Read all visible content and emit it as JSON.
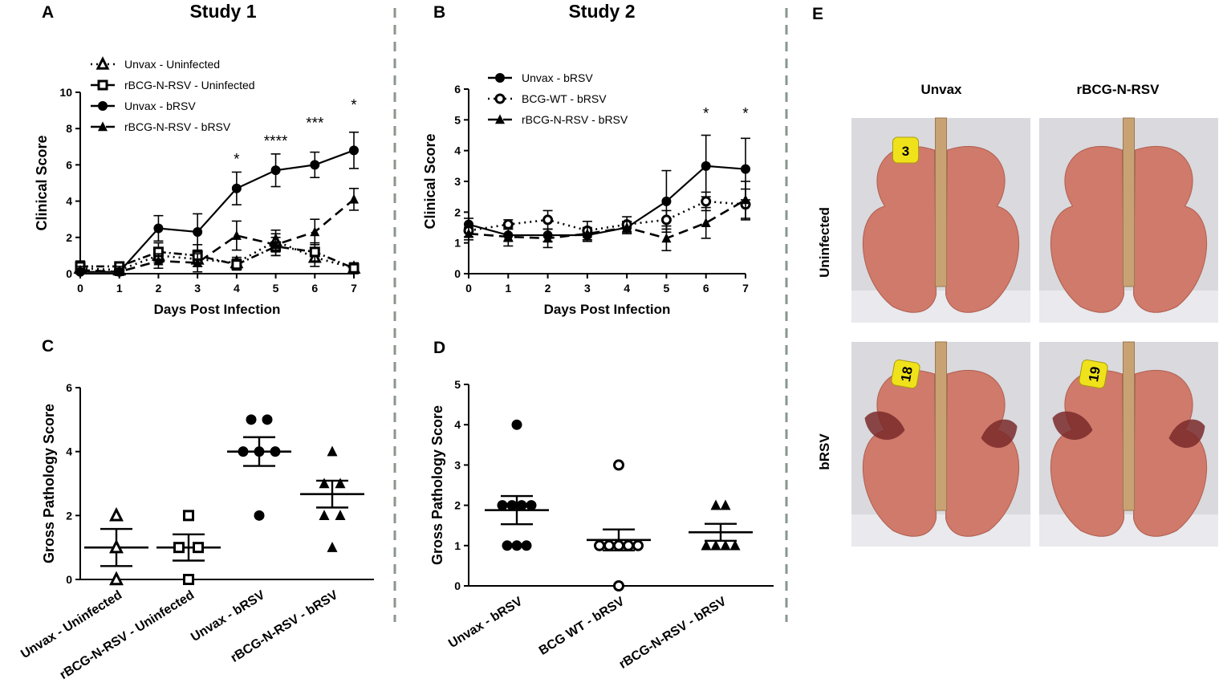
{
  "figure": {
    "panel_letters": {
      "A": "A",
      "B": "B",
      "C": "C",
      "D": "D",
      "E": "E"
    },
    "study_titles": {
      "study1": "Study 1",
      "study2": "Study 2"
    },
    "divider_color": "#8a968e"
  },
  "chart_data": [
    {
      "id": "A",
      "type": "line",
      "title": "Study 1",
      "xlabel": "Days Post Infection",
      "ylabel": "Clinical Score",
      "xlim": [
        0,
        7
      ],
      "ylim": [
        0,
        10
      ],
      "xticks": [
        "0",
        "1",
        "2",
        "3",
        "4",
        "5",
        "6",
        "7"
      ],
      "yticks": [
        "0",
        "2",
        "4",
        "6",
        "8",
        "10"
      ],
      "x": [
        0,
        1,
        2,
        3,
        4,
        5,
        6,
        7
      ],
      "series": [
        {
          "name": "Unvax - Uninfected",
          "marker": "open-triangle",
          "line": "dotted",
          "values": [
            0.3,
            0.2,
            1.0,
            0.8,
            0.6,
            1.8,
            0.9,
            0.3
          ],
          "errors": [
            0.3,
            0.2,
            0.4,
            0.4,
            0.3,
            0.6,
            0.5,
            0.2
          ]
        },
        {
          "name": "rBCG-N-RSV - Uninfected",
          "marker": "open-square",
          "line": "dashdot",
          "values": [
            0.4,
            0.4,
            1.2,
            1.0,
            0.5,
            1.5,
            1.2,
            0.3
          ],
          "errors": [
            0.3,
            0.2,
            0.5,
            0.6,
            0.3,
            0.5,
            0.5,
            0.3
          ]
        },
        {
          "name": "Unvax - bRSV",
          "marker": "filled-circle",
          "line": "solid",
          "values": [
            0.1,
            0.1,
            2.5,
            2.3,
            4.7,
            5.7,
            6.0,
            6.8
          ],
          "errors": [
            0.2,
            0.3,
            0.7,
            1.0,
            0.9,
            0.9,
            0.7,
            1.0
          ]
        },
        {
          "name": "rBCG-N-RSV - bRSV",
          "marker": "filled-triangle",
          "line": "dashed",
          "values": [
            0.2,
            0.1,
            0.7,
            0.6,
            2.1,
            1.6,
            2.3,
            4.1
          ],
          "errors": [
            0.2,
            0.2,
            0.4,
            0.5,
            0.8,
            0.6,
            0.7,
            0.6
          ]
        }
      ],
      "annotations": [
        {
          "x": 4,
          "y": 6.3,
          "text": "*"
        },
        {
          "x": 5,
          "y": 7.3,
          "text": "****"
        },
        {
          "x": 6,
          "y": 8.3,
          "text": "***"
        },
        {
          "x": 7,
          "y": 9.3,
          "text": "*"
        }
      ]
    },
    {
      "id": "B",
      "type": "line",
      "title": "Study 2",
      "xlabel": "Days Post Infection",
      "ylabel": "Clinical Score",
      "xlim": [
        0,
        7
      ],
      "ylim": [
        0,
        6
      ],
      "xticks": [
        "0",
        "1",
        "2",
        "3",
        "4",
        "5",
        "6",
        "7"
      ],
      "yticks": [
        "0",
        "1",
        "2",
        "3",
        "4",
        "5",
        "6"
      ],
      "x": [
        0,
        1,
        2,
        3,
        4,
        5,
        6,
        7
      ],
      "series": [
        {
          "name": "Unvax - bRSV",
          "marker": "filled-circle",
          "line": "solid",
          "values": [
            1.6,
            1.25,
            1.25,
            1.25,
            1.5,
            2.35,
            3.5,
            3.4
          ],
          "errors": [
            0.2,
            0.2,
            0.2,
            0.2,
            0.2,
            1.0,
            1.0,
            1.0
          ]
        },
        {
          "name": "BCG-WT - bRSV",
          "marker": "open-circle",
          "line": "dotted",
          "values": [
            1.4,
            1.6,
            1.75,
            1.4,
            1.6,
            1.75,
            2.35,
            2.25
          ],
          "errors": [
            0.2,
            0.15,
            0.3,
            0.3,
            0.25,
            0.3,
            0.3,
            0.5
          ]
        },
        {
          "name": "rBCG-N-RSV - bRSV",
          "marker": "filled-triangle",
          "line": "dashed",
          "values": [
            1.3,
            1.2,
            1.15,
            1.3,
            1.5,
            1.15,
            1.65,
            2.4
          ],
          "errors": [
            0.2,
            0.3,
            0.3,
            0.2,
            0.2,
            0.4,
            0.5,
            0.6
          ]
        }
      ],
      "annotations": [
        {
          "x": 6,
          "y": 5.2,
          "text": "*"
        },
        {
          "x": 7,
          "y": 5.2,
          "text": "*"
        }
      ]
    },
    {
      "id": "C",
      "type": "scatter",
      "ylabel": "Gross Pathology Score",
      "ylim": [
        0,
        6
      ],
      "yticks": [
        "0",
        "2",
        "4",
        "6"
      ],
      "categories": [
        "Unvax - Uninfected",
        "rBCG-N-RSV - Uninfected",
        "Unvax - bRSV",
        "rBCG-N-RSV - bRSV"
      ],
      "groups": [
        {
          "marker": "open-triangle",
          "points": [
            [
              0,
              2
            ],
            [
              0,
              1
            ],
            [
              0,
              0
            ]
          ],
          "mean": 1.0,
          "sem": 0.58
        },
        {
          "marker": "open-square",
          "points": [
            [
              0,
              2
            ],
            [
              -0.12,
              1
            ],
            [
              0.12,
              1
            ],
            [
              0,
              0
            ]
          ],
          "mean": 1.0,
          "sem": 0.41
        },
        {
          "marker": "filled-circle",
          "points": [
            [
              -0.1,
              5
            ],
            [
              0.1,
              5
            ],
            [
              -0.2,
              4
            ],
            [
              0,
              4
            ],
            [
              0.2,
              4
            ],
            [
              0,
              2
            ]
          ],
          "mean": 4.0,
          "sem": 0.45
        },
        {
          "marker": "filled-triangle",
          "points": [
            [
              0,
              4
            ],
            [
              -0.1,
              3
            ],
            [
              0.1,
              3
            ],
            [
              -0.1,
              2
            ],
            [
              0.1,
              2
            ],
            [
              0,
              1
            ]
          ],
          "mean": 2.67,
          "sem": 0.42
        }
      ]
    },
    {
      "id": "D",
      "type": "scatter",
      "ylabel": "Gross Pathology Score",
      "ylim": [
        0,
        5
      ],
      "yticks": [
        "0",
        "1",
        "2",
        "3",
        "4",
        "5"
      ],
      "categories": [
        "Unvax - bRSV",
        "BCG WT - bRSV",
        "rBCG-N-RSV - bRSV"
      ],
      "groups": [
        {
          "marker": "filled-circle",
          "points": [
            [
              0,
              4
            ],
            [
              -0.18,
              2
            ],
            [
              -0.06,
              2
            ],
            [
              0.06,
              2
            ],
            [
              0.18,
              2
            ],
            [
              -0.12,
              1
            ],
            [
              0,
              1
            ],
            [
              0.12,
              1
            ]
          ],
          "mean": 1.88,
          "sem": 0.35
        },
        {
          "marker": "open-circle",
          "points": [
            [
              0,
              3
            ],
            [
              -0.24,
              1
            ],
            [
              -0.12,
              1
            ],
            [
              0,
              1
            ],
            [
              0.12,
              1
            ],
            [
              0.24,
              1
            ],
            [
              0,
              0
            ]
          ],
          "mean": 1.14,
          "sem": 0.26
        },
        {
          "marker": "filled-triangle",
          "points": [
            [
              -0.06,
              2
            ],
            [
              0.06,
              2
            ],
            [
              -0.18,
              1
            ],
            [
              -0.06,
              1
            ],
            [
              0.06,
              1
            ],
            [
              0.18,
              1
            ]
          ],
          "mean": 1.33,
          "sem": 0.21
        }
      ]
    }
  ],
  "panel_e": {
    "col_labels": [
      "Unvax",
      "rBCG-N-RSV"
    ],
    "row_labels": [
      "Uninfected",
      "bRSV"
    ],
    "tags": [
      "3",
      "",
      "18",
      "19"
    ],
    "tag_color": "#f0e21a",
    "lung_color": "#cf7a6a",
    "lung_dark_color": "#7a2a2a",
    "trachea_color": "#c9a273"
  }
}
